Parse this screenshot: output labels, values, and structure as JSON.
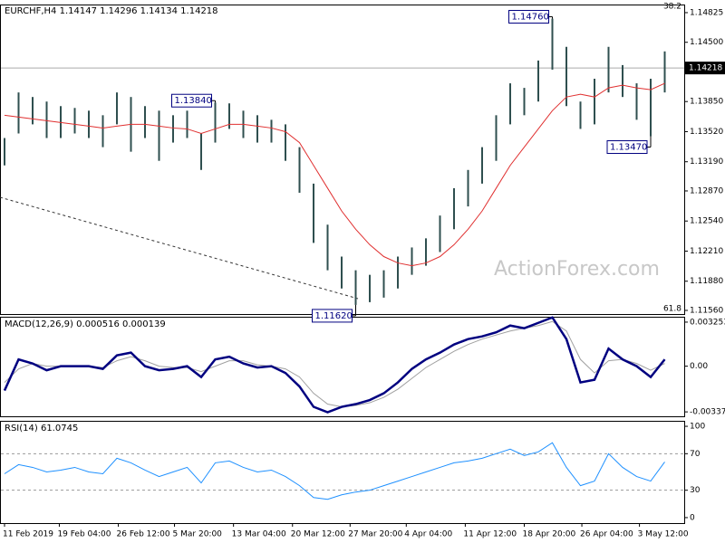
{
  "chart_data": {
    "type": "ohlc",
    "title": "EURCHF,H4  1.14147 1.14296 1.14134 1.14218",
    "watermark": "ActionForex.com",
    "fib_top": "38.2",
    "fib_bottom": "61.8",
    "xticks": [
      {
        "value": 0,
        "label": "11 Feb 2019"
      },
      {
        "value": 3.9,
        "label": "19 Feb 04:00"
      },
      {
        "value": 8.1,
        "label": "26 Feb 12:00"
      },
      {
        "value": 12.1,
        "label": "5 Mar 20:00"
      },
      {
        "value": 16.3,
        "label": "13 Mar 04:00"
      },
      {
        "value": 20.5,
        "label": "20 Mar 12:00"
      },
      {
        "value": 24.6,
        "label": "27 Mar 20:00"
      },
      {
        "value": 28.6,
        "label": "4 Apr 04:00"
      },
      {
        "value": 32.8,
        "label": "11 Apr 12:00"
      },
      {
        "value": 37,
        "label": "18 Apr 20:00"
      },
      {
        "value": 41.1,
        "label": "26 Apr 04:00"
      },
      {
        "value": 45.2,
        "label": "3 May 12:00"
      }
    ],
    "ylim": [
      1.1152,
      1.14914
    ],
    "yticks": [
      {
        "value": 1.14825,
        "label": "1.14825"
      },
      {
        "value": 1.145,
        "label": "1.14500"
      },
      {
        "value": 1.1385,
        "label": "1.13850"
      },
      {
        "value": 1.1352,
        "label": "1.13520"
      },
      {
        "value": 1.1319,
        "label": "1.13190"
      },
      {
        "value": 1.1287,
        "label": "1.12870"
      },
      {
        "value": 1.1254,
        "label": "1.12540"
      },
      {
        "value": 1.1221,
        "label": "1.12210"
      },
      {
        "value": 1.1188,
        "label": "1.11880"
      },
      {
        "value": 1.1156,
        "label": "1.11560"
      }
    ],
    "current_price": {
      "value": 1.14218,
      "label": "1.14218"
    },
    "color": "#2f4f4f",
    "high": [
      1.1345,
      1.1395,
      1.139,
      1.1385,
      1.138,
      1.1378,
      1.1375,
      1.137,
      1.1395,
      1.139,
      1.138,
      1.1375,
      1.137,
      1.1375,
      1.135,
      1.1384,
      1.1383,
      1.1375,
      1.137,
      1.1365,
      1.136,
      1.1335,
      1.1295,
      1.125,
      1.1215,
      1.12,
      1.1195,
      1.12,
      1.1215,
      1.1225,
      1.1235,
      1.126,
      1.129,
      1.131,
      1.1335,
      1.137,
      1.1405,
      1.14,
      1.143,
      1.1476,
      1.1445,
      1.1385,
      1.141,
      1.1445,
      1.1425,
      1.1405,
      1.141,
      1.144
    ],
    "low": [
      1.1315,
      1.135,
      1.136,
      1.1345,
      1.1345,
      1.135,
      1.1345,
      1.1335,
      1.136,
      1.133,
      1.1345,
      1.132,
      1.134,
      1.1345,
      1.131,
      1.134,
      1.1355,
      1.1345,
      1.134,
      1.134,
      1.132,
      1.1285,
      1.123,
      1.12,
      1.118,
      1.1162,
      1.1165,
      1.117,
      1.118,
      1.1195,
      1.1205,
      1.122,
      1.1245,
      1.127,
      1.1295,
      1.132,
      1.136,
      1.137,
      1.1385,
      1.142,
      1.138,
      1.1355,
      1.136,
      1.1395,
      1.139,
      1.1365,
      1.1347,
      1.1395
    ],
    "ma": {
      "color": "#e03030",
      "values": [
        1.137,
        1.1368,
        1.1366,
        1.1364,
        1.1362,
        1.136,
        1.1358,
        1.1356,
        1.1358,
        1.136,
        1.136,
        1.1358,
        1.1356,
        1.1355,
        1.135,
        1.1355,
        1.136,
        1.136,
        1.1358,
        1.1356,
        1.1352,
        1.134,
        1.1315,
        1.129,
        1.1265,
        1.1245,
        1.1228,
        1.1215,
        1.1208,
        1.1205,
        1.1208,
        1.1215,
        1.1228,
        1.1245,
        1.1265,
        1.129,
        1.1315,
        1.1335,
        1.1355,
        1.1375,
        1.139,
        1.1393,
        1.139,
        1.14,
        1.1403,
        1.14,
        1.1398,
        1.1405
      ]
    },
    "annotations": [
      {
        "label": "1.14760",
        "value": 1.1476,
        "index": 39
      },
      {
        "label": "1.13840",
        "value": 1.1384,
        "index": 15
      },
      {
        "label": "1.13470",
        "value": 1.1347,
        "index": 46
      },
      {
        "label": "1.11620",
        "value": 1.1162,
        "index": 25
      }
    ],
    "macd": {
      "title": "MACD(12,26,9) 0.000516 0.000139",
      "ylim": [
        -0.0037,
        0.00365
      ],
      "yticks": [
        0.003253,
        {
          "value": 0,
          "label": "0.00"
        },
        -0.003373
      ],
      "series": [
        {
          "color": "#000080",
          "values": [
            -0.0018,
            0.0005,
            0.0002,
            -0.0003,
            0.0,
            0.0,
            0.0,
            -0.0002,
            0.0008,
            0.001,
            0.0,
            -0.0003,
            -0.0002,
            0.0,
            -0.0008,
            0.0005,
            0.0007,
            0.0002,
            -0.0001,
            0.0,
            -0.0005,
            -0.0015,
            -0.003,
            -0.0034,
            -0.003,
            -0.0028,
            -0.0025,
            -0.002,
            -0.0012,
            -0.0002,
            0.0005,
            0.001,
            0.0016,
            0.002,
            0.0022,
            0.0025,
            0.003,
            0.0028,
            0.0032,
            0.0036,
            0.002,
            -0.0012,
            -0.001,
            0.0013,
            0.0005,
            0.0,
            -0.0008,
            0.0005
          ]
        },
        {
          "color": "#a0a0a0",
          "values": [
            -0.0012,
            -0.0002,
            0.0002,
            0.0,
            0.0,
            0.0,
            0.0,
            -0.0001,
            0.0004,
            0.0007,
            0.0004,
            0.0,
            -0.0001,
            -0.0001,
            -0.0004,
            0.0,
            0.0004,
            0.0004,
            0.0001,
            0.0,
            -0.0002,
            -0.0008,
            -0.002,
            -0.0028,
            -0.003,
            -0.0029,
            -0.0027,
            -0.0023,
            -0.0017,
            -0.0009,
            -0.0001,
            0.0005,
            0.0011,
            0.0016,
            0.002,
            0.0023,
            0.0026,
            0.0028,
            0.003,
            0.0033,
            0.0026,
            0.0005,
            -0.0005,
            0.0004,
            0.0005,
            0.0002,
            -0.0003,
            0.0002
          ]
        }
      ]
    },
    "rsi": {
      "title": "RSI(14) 61.0745",
      "ylim": [
        -6,
        106
      ],
      "yticks": [
        100,
        70,
        30,
        0
      ],
      "levels": [
        70,
        30
      ],
      "color": "#1e90ff",
      "values": [
        48,
        58,
        55,
        50,
        52,
        55,
        50,
        48,
        65,
        60,
        52,
        45,
        50,
        55,
        38,
        60,
        62,
        55,
        50,
        52,
        45,
        35,
        22,
        20,
        25,
        28,
        30,
        35,
        40,
        45,
        50,
        55,
        60,
        62,
        65,
        70,
        75,
        68,
        72,
        82,
        55,
        35,
        40,
        70,
        55,
        45,
        40,
        61
      ]
    }
  }
}
